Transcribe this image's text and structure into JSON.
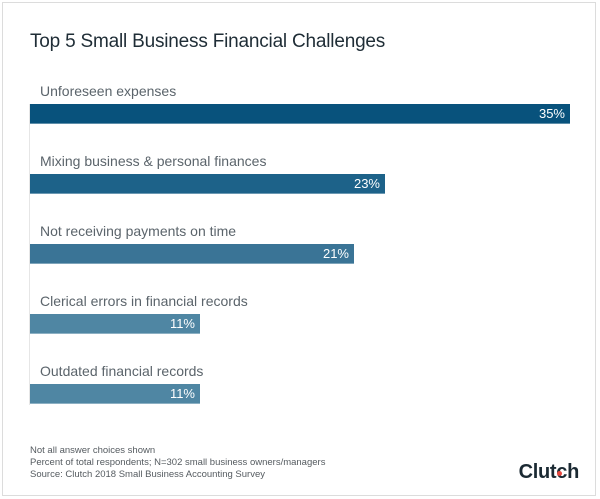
{
  "title": "Top 5 Small Business Financial Challenges",
  "chart_data": {
    "type": "bar",
    "orientation": "horizontal",
    "title": "Top 5 Small Business Financial Challenges",
    "categories": [
      "Unforeseen expenses",
      "Mixing business & personal finances",
      "Not receiving payments on time",
      "Clerical errors in financial records",
      "Outdated financial records"
    ],
    "values": [
      35,
      23,
      21,
      11,
      11
    ],
    "value_labels": [
      "35%",
      "23%",
      "21%",
      "11%",
      "11%"
    ],
    "colors": [
      "#08527c",
      "#1d6289",
      "#3a7496",
      "#4f86a3",
      "#4f86a3"
    ],
    "xlabel": "",
    "ylabel": "",
    "xlim": [
      0,
      35
    ],
    "grid": false,
    "legend": null
  },
  "footnotes": [
    "Not all answer choices shown",
    "Percent of total respondents; N=302 small business owners/managers",
    "Source: Clutch 2018 Small Business Accounting Survey"
  ],
  "logo": {
    "text": "Clutch",
    "accent_color": "#e8483f"
  }
}
